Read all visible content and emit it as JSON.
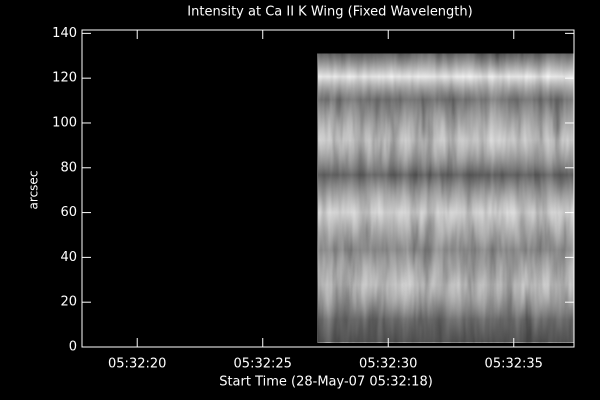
{
  "chart_data": {
    "type": "image",
    "title": "Intensity at Ca II K Wing (Fixed Wavelength)",
    "x_label": "Start Time (28-May-07 05:32:18)",
    "y_label": "arcsec",
    "xlim": [
      17.8,
      37.4
    ],
    "xticks": [
      {
        "value": 20,
        "label": "05:32:20"
      },
      {
        "value": 25,
        "label": "05:32:25"
      },
      {
        "value": 30,
        "label": "05:32:30"
      },
      {
        "value": 35,
        "label": "05:32:35"
      }
    ],
    "ylim": [
      0,
      141.5
    ],
    "yticks": [
      0,
      20,
      40,
      60,
      80,
      100,
      120,
      140
    ],
    "image_xrange": [
      27.2,
      37.4
    ],
    "image_yrange": [
      2,
      131
    ],
    "colormap": "gray",
    "axis_color": "#ffffff",
    "background": "#000000"
  }
}
